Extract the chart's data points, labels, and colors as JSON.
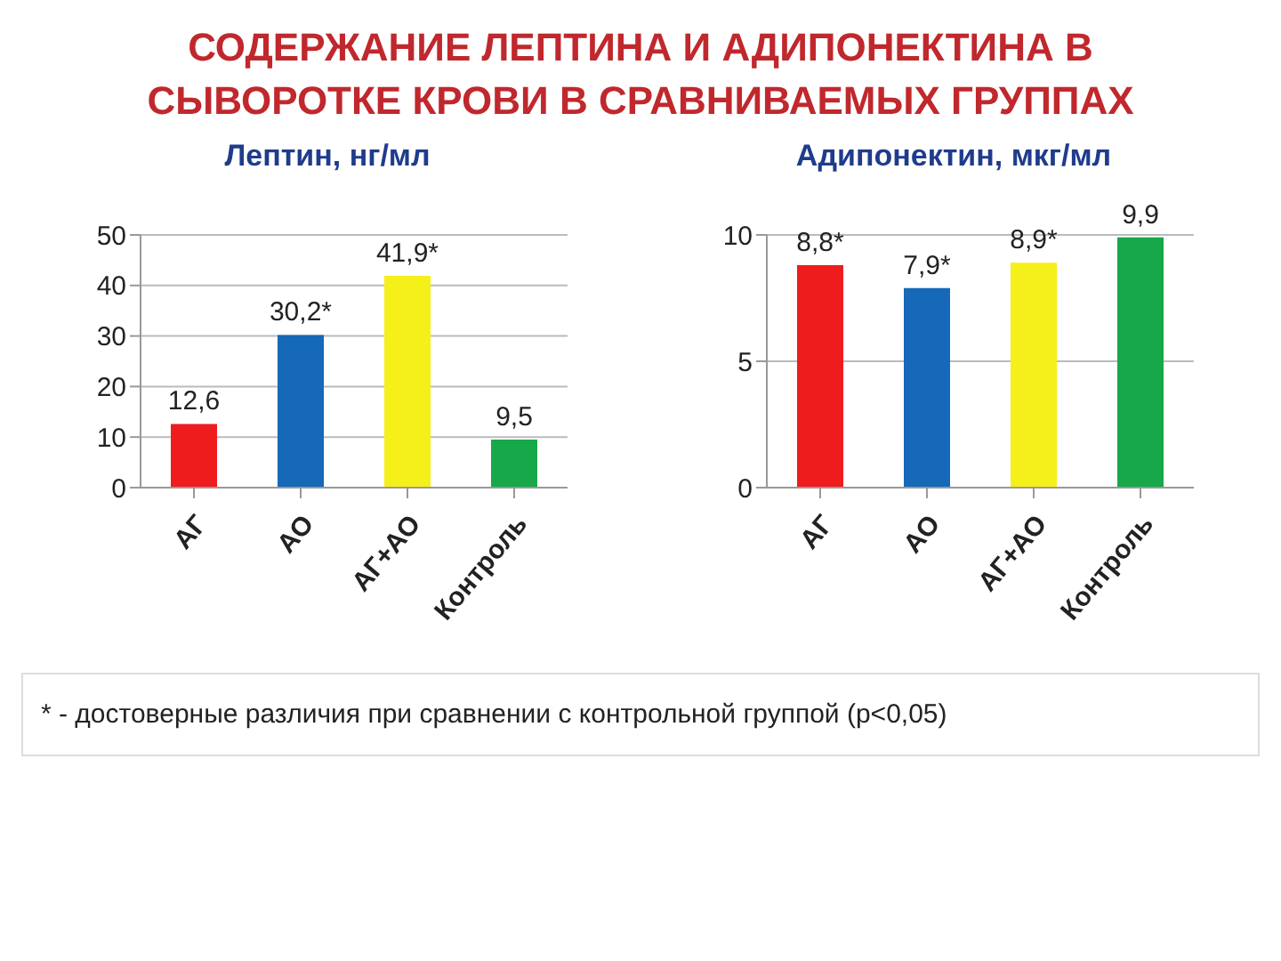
{
  "chart_data": [
    {
      "type": "bar",
      "title": "СОДЕРЖАНИЕ ЛЕПТИНА И АДИПОНЕКТИНА В СЫВОРОТКЕ КРОВИ В СРАВНИВАЕМЫХ ГРУППАХ",
      "subtitle": "Лептин, нг/мл",
      "categories": [
        "АГ",
        "АО",
        "АГ+АО",
        "Контроль"
      ],
      "values": [
        12.6,
        30.2,
        41.9,
        9.5
      ],
      "colors": [
        "#ee1c1c",
        "#1668b8",
        "#f5f01a",
        "#17a84a"
      ],
      "value_labels": [
        "12,6",
        "30,2*",
        "41,9*",
        "9,5"
      ],
      "ylim": [
        0,
        50
      ],
      "yticks": [
        0,
        10,
        20,
        30,
        40,
        50
      ],
      "grid": "y"
    },
    {
      "type": "bar",
      "subtitle": "Адипонектин, мкг/мл",
      "categories": [
        "АГ",
        "АО",
        "АГ+АО",
        "Контроль"
      ],
      "values": [
        8.8,
        7.9,
        8.9,
        9.9
      ],
      "colors": [
        "#ee1c1c",
        "#1668b8",
        "#f5f01a",
        "#17a84a"
      ],
      "value_labels": [
        "8,8*",
        "7,9*",
        "8,9*",
        "9,9"
      ],
      "ylim": [
        0,
        10
      ],
      "yticks": [
        0,
        5,
        10
      ],
      "grid": "y",
      "annotations": [
        "* - достоверные различия при сравнении с контрольной группой (p<0,05)"
      ]
    }
  ]
}
